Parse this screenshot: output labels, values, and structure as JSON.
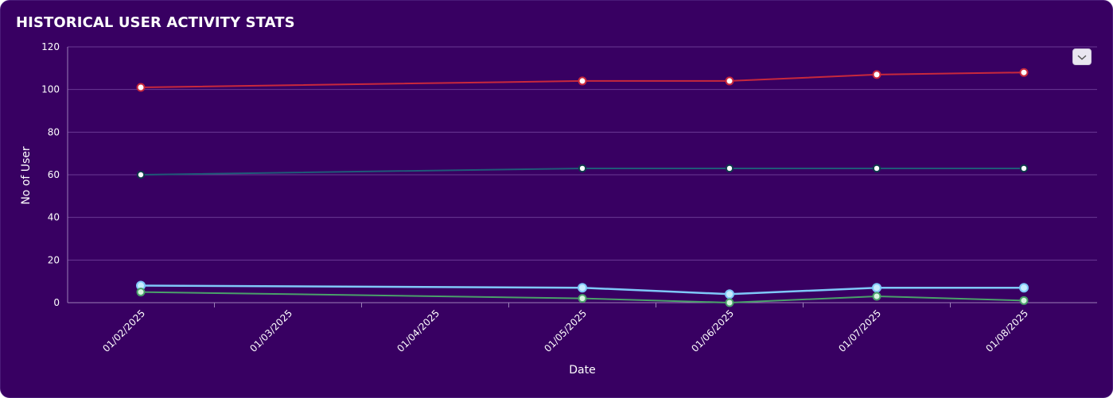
{
  "card": {
    "title": "HISTORICAL USER ACTIVITY STATS"
  },
  "menu": {
    "icon": "chevron-down-icon"
  },
  "colors": {
    "background": "#380062",
    "grid": "#6a3a94",
    "series": [
      "#c8283c",
      "#1f5a78",
      "#7fc8f8",
      "#4aa06a"
    ]
  },
  "chart_data": {
    "type": "line",
    "title": "HISTORICAL USER ACTIVITY STATS",
    "xlabel": "Date",
    "ylabel": "No of User",
    "x_ticks": [
      "01/02/2025",
      "01/03/2025",
      "01/04/2025",
      "01/05/2025",
      "01/06/2025",
      "01/07/2025",
      "01/08/2025"
    ],
    "ylim": [
      0,
      120
    ],
    "y_ticks": [
      0,
      20,
      40,
      60,
      80,
      100,
      120
    ],
    "grid": true,
    "series": [
      {
        "x": [
          "01/02/2025",
          "01/05/2025",
          "01/06/2025",
          "01/07/2025",
          "01/08/2025"
        ],
        "values": [
          101,
          104,
          104,
          107,
          108
        ]
      },
      {
        "x": [
          "01/02/2025",
          "01/05/2025",
          "01/06/2025",
          "01/07/2025",
          "01/08/2025"
        ],
        "values": [
          60,
          63,
          63,
          63,
          63
        ]
      },
      {
        "x": [
          "01/02/2025",
          "01/05/2025",
          "01/06/2025",
          "01/07/2025",
          "01/08/2025"
        ],
        "values": [
          8,
          7,
          4,
          7,
          7
        ]
      },
      {
        "x": [
          "01/02/2025",
          "01/05/2025",
          "01/06/2025",
          "01/07/2025",
          "01/08/2025"
        ],
        "values": [
          5,
          2,
          0,
          3,
          1
        ]
      }
    ]
  }
}
